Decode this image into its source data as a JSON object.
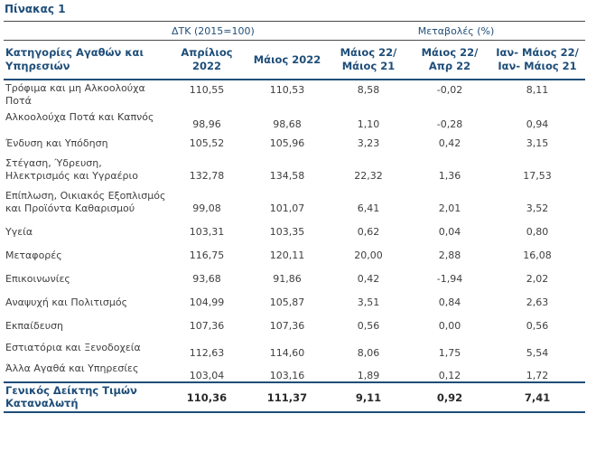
{
  "title": "Πίνακας 1",
  "header": {
    "group_cpi": "ΔΤΚ (2015=100)",
    "group_changes": "Μεταβολές (%)",
    "col_category": "Κατηγορίες Αγαθών και Υπηρεσιών",
    "col_april": "Απρίλιος 2022",
    "col_may": "Μάιος 2022",
    "col_may22_may21": "Μάιος 22/ Μάιος 21",
    "col_may22_apr22": "Μάιος 22/ Απρ 22",
    "col_janmay": "Ιαν- Μάιος 22/ Ιαν- Μάιος 21"
  },
  "rows": [
    {
      "category": "Τρόφιμα και μη Αλκοολούχα Ποτά",
      "april": "110,55",
      "may": "110,53",
      "yoy": "8,58",
      "mom": "-0,02",
      "ytd": "8,11"
    },
    {
      "category": "Αλκοολούχα Ποτά και Καπνός",
      "april": "98,96",
      "may": "98,68",
      "yoy": "1,10",
      "mom": "-0,28",
      "ytd": "0,94"
    },
    {
      "category": "Ένδυση και Υπόδηση",
      "april": "105,52",
      "may": "105,96",
      "yoy": "3,23",
      "mom": "0,42",
      "ytd": "3,15"
    },
    {
      "category": "Στέγαση, Ύδρευση, Ηλεκτρισμός και Υγραέριο",
      "april": "132,78",
      "may": "134,58",
      "yoy": "22,32",
      "mom": "1,36",
      "ytd": "17,53"
    },
    {
      "category": "Επίπλωση, Οικιακός Εξοπλισμός και Προϊόντα Καθαρισμού",
      "april": "99,08",
      "may": "101,07",
      "yoy": "6,41",
      "mom": "2,01",
      "ytd": "3,52"
    },
    {
      "category": "Υγεία",
      "april": "103,31",
      "may": "103,35",
      "yoy": "0,62",
      "mom": "0,04",
      "ytd": "0,80"
    },
    {
      "category": "Μεταφορές",
      "april": "116,75",
      "may": "120,11",
      "yoy": "20,00",
      "mom": "2,88",
      "ytd": "16,08"
    },
    {
      "category": "Επικοινωνίες",
      "april": "93,68",
      "may": "91,86",
      "yoy": "0,42",
      "mom": "-1,94",
      "ytd": "2,02"
    },
    {
      "category": "Αναψυχή και Πολιτισμός",
      "april": "104,99",
      "may": "105,87",
      "yoy": "3,51",
      "mom": "0,84",
      "ytd": "2,63"
    },
    {
      "category": "Εκπαίδευση",
      "april": "107,36",
      "may": "107,36",
      "yoy": "0,56",
      "mom": "0,00",
      "ytd": "0,56"
    },
    {
      "category": "Εστιατόρια και Ξενοδοχεία",
      "april": "112,63",
      "may": "114,60",
      "yoy": "8,06",
      "mom": "1,75",
      "ytd": "5,54"
    },
    {
      "category": "Άλλα Αγαθά και Υπηρεσίες",
      "april": "103,04",
      "may": "103,16",
      "yoy": "1,89",
      "mom": "0,12",
      "ytd": "1,72"
    }
  ],
  "total": {
    "category": "Γενικός Δείκτης Τιμών Καταναλωτή",
    "april": "110,36",
    "may": "111,37",
    "yoy": "9,11",
    "mom": "0,92",
    "ytd": "7,41"
  }
}
